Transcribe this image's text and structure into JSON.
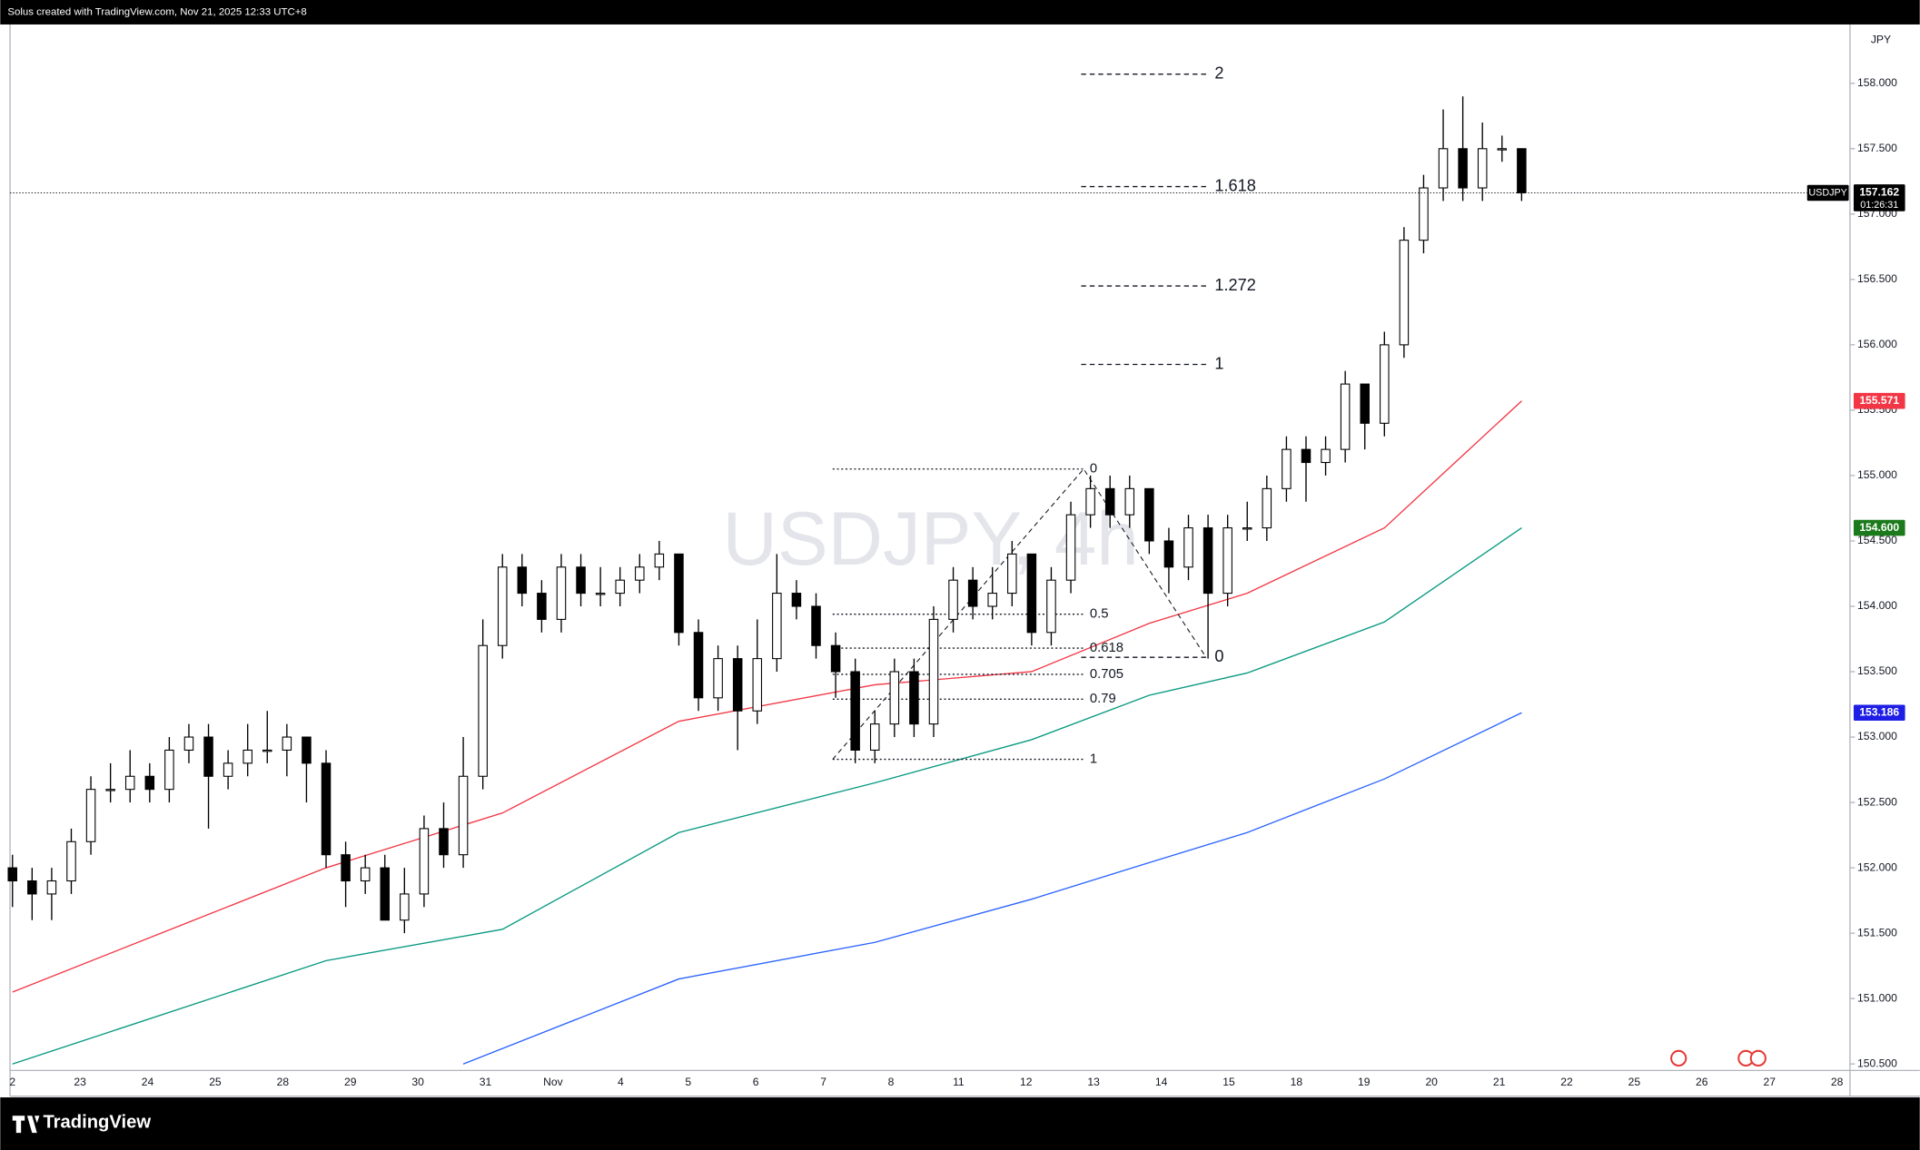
{
  "chart_data": {
    "type": "candlestick",
    "header": "Solus created with TradingView.com, Nov 21, 2025 12:33 UTC+8",
    "watermark": "USDJPY, 4h",
    "symbol": "USDJPY",
    "currency": "JPY",
    "countdown": "01:26:31",
    "brand": "TradingView",
    "x_labels": [
      "2",
      "23",
      "24",
      "25",
      "28",
      "29",
      "30",
      "31",
      "Nov",
      "4",
      "5",
      "6",
      "7",
      "8",
      "11",
      "12",
      "13",
      "14",
      "15",
      "18",
      "19",
      "20",
      "21",
      "22",
      "25",
      "26",
      "27",
      "28"
    ],
    "open": [
      152.0,
      151.9,
      151.8,
      151.9,
      152.2,
      152.6,
      152.6,
      152.7,
      152.6,
      152.9,
      153.0,
      152.7,
      152.8,
      152.9,
      152.9,
      153.0,
      152.8,
      152.1,
      151.9,
      152.0,
      151.6,
      151.8,
      152.3,
      152.1,
      152.7,
      153.7,
      154.3,
      154.1,
      153.9,
      154.3,
      154.1,
      154.1,
      154.2,
      154.3,
      154.4,
      153.8,
      153.3,
      153.6,
      153.2,
      153.6,
      154.1,
      154.0,
      153.7,
      153.5,
      152.9,
      153.1,
      153.5,
      153.1,
      153.9,
      154.2,
      154.0,
      154.1,
      154.4,
      153.8,
      154.2,
      154.7,
      154.9,
      154.7,
      154.9,
      154.5,
      154.3,
      154.6,
      154.1,
      154.6,
      154.6,
      154.9,
      155.2,
      155.1,
      155.2,
      155.7,
      155.4,
      156.0,
      156.8,
      157.2,
      157.5,
      157.2,
      157.5,
      157.5
    ],
    "high": [
      152.1,
      152.0,
      152.0,
      152.3,
      152.7,
      152.8,
      152.9,
      152.8,
      153.0,
      153.1,
      153.1,
      152.9,
      153.1,
      153.2,
      153.1,
      153.0,
      152.9,
      152.2,
      152.1,
      152.1,
      152.0,
      152.4,
      152.5,
      153.0,
      153.9,
      154.4,
      154.4,
      154.2,
      154.4,
      154.4,
      154.3,
      154.3,
      154.4,
      154.5,
      154.4,
      153.9,
      153.7,
      153.7,
      153.9,
      154.4,
      154.2,
      154.1,
      153.8,
      153.6,
      153.2,
      153.6,
      153.6,
      154.0,
      154.3,
      154.3,
      154.3,
      154.5,
      154.4,
      154.3,
      154.8,
      155.0,
      155.0,
      155.0,
      154.9,
      154.6,
      154.7,
      154.7,
      154.7,
      154.8,
      155.0,
      155.3,
      155.3,
      155.3,
      155.8,
      155.7,
      156.1,
      156.9,
      157.3,
      157.8,
      157.9,
      157.7,
      157.6,
      157.5
    ],
    "low": [
      151.7,
      151.6,
      151.6,
      151.8,
      152.1,
      152.5,
      152.5,
      152.5,
      152.5,
      152.8,
      152.3,
      152.6,
      152.7,
      152.8,
      152.7,
      152.5,
      152.0,
      151.7,
      151.8,
      151.6,
      151.5,
      151.7,
      152.0,
      152.0,
      152.6,
      153.6,
      154.0,
      153.8,
      153.8,
      154.0,
      154.0,
      154.0,
      154.1,
      154.2,
      153.7,
      153.2,
      153.2,
      152.9,
      153.1,
      153.5,
      153.9,
      153.6,
      153.3,
      152.8,
      152.8,
      153.0,
      153.0,
      153.0,
      153.8,
      153.9,
      153.9,
      154.0,
      153.7,
      153.7,
      154.1,
      154.6,
      154.6,
      154.6,
      154.4,
      154.1,
      154.2,
      153.6,
      154.0,
      154.5,
      154.5,
      154.8,
      154.8,
      155.0,
      155.1,
      155.2,
      155.3,
      155.9,
      156.7,
      157.1,
      157.1,
      157.1,
      157.4,
      157.1
    ],
    "close": [
      151.9,
      151.8,
      151.9,
      152.2,
      152.6,
      152.6,
      152.7,
      152.6,
      152.9,
      153.0,
      152.7,
      152.8,
      152.9,
      152.9,
      153.0,
      152.8,
      152.1,
      151.9,
      152.0,
      151.6,
      151.8,
      152.3,
      152.1,
      152.7,
      153.7,
      154.3,
      154.1,
      153.9,
      154.3,
      154.1,
      154.1,
      154.2,
      154.3,
      154.4,
      153.8,
      153.3,
      153.6,
      153.2,
      153.6,
      154.1,
      154.0,
      153.7,
      153.5,
      152.9,
      153.1,
      153.5,
      153.1,
      153.9,
      154.2,
      154.0,
      154.1,
      154.4,
      153.8,
      154.2,
      154.7,
      154.9,
      154.7,
      154.9,
      154.5,
      154.3,
      154.6,
      154.1,
      154.6,
      154.6,
      154.9,
      155.2,
      155.1,
      155.2,
      155.7,
      155.4,
      156.0,
      156.8,
      157.2,
      157.5,
      157.2,
      157.5,
      157.5,
      157.162
    ],
    "series": [
      {
        "color": "#f23645",
        "x": [
          0,
          16,
          25,
          34,
          44,
          52,
          58,
          63,
          70,
          77
        ],
        "values": [
          151.05,
          152.0,
          152.42,
          153.12,
          153.4,
          153.5,
          153.87,
          154.1,
          154.6,
          155.571
        ]
      },
      {
        "color": "#089981",
        "tag_color": "#1b7a1b",
        "x": [
          0,
          16,
          25,
          34,
          44,
          52,
          58,
          63,
          70,
          77
        ],
        "values": [
          150.5,
          151.29,
          151.53,
          152.27,
          152.65,
          152.98,
          153.32,
          153.49,
          153.88,
          154.6
        ],
        "last_label": "154.600"
      },
      {
        "color": "#2962ff",
        "tag_color": "#1e1ee6",
        "x": [
          23,
          34,
          44,
          52,
          58,
          63,
          70,
          77
        ],
        "values": [
          150.5,
          151.15,
          151.43,
          151.76,
          152.04,
          152.27,
          152.68,
          153.186
        ]
      }
    ],
    "fib_retracement": {
      "levels": [
        0,
        0.5,
        0.618,
        0.705,
        0.79,
        1
      ],
      "prices": [
        155.05,
        153.94,
        153.68,
        153.48,
        153.29,
        152.83
      ]
    },
    "fib_extension": {
      "levels": [
        0,
        1,
        1.272,
        1.618,
        2
      ],
      "prices": [
        153.61,
        155.85,
        156.45,
        157.21,
        158.07
      ]
    },
    "ylim": [
      150.45,
      158.45
    ],
    "yticks": [
      {
        "value": 150.5,
        "label": "150.500"
      },
      {
        "value": 151,
        "label": "151.000"
      },
      {
        "value": 151.5,
        "label": "151.500"
      },
      {
        "value": 152,
        "label": "152.000"
      },
      {
        "value": 152.5,
        "label": "152.500"
      },
      {
        "value": 153,
        "label": "153.000"
      },
      {
        "value": 153.5,
        "label": "153.500"
      },
      {
        "value": 154,
        "label": "154.000"
      },
      {
        "value": 154.5,
        "label": "154.500"
      },
      {
        "value": 155,
        "label": "155.000"
      },
      {
        "value": 155.5,
        "label": "155.500"
      },
      {
        "value": 156,
        "label": "156.000"
      },
      {
        "value": 156.5,
        "label": "156.500"
      },
      {
        "value": 157,
        "label": "157.000"
      },
      {
        "value": 157.5,
        "label": "157.500"
      },
      {
        "value": 158,
        "label": "158.000"
      }
    ]
  }
}
